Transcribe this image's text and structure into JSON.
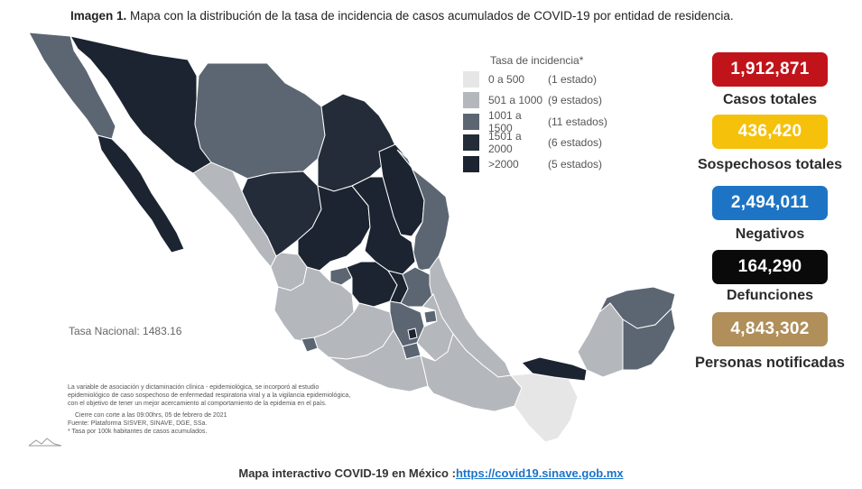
{
  "header": {
    "title_bold": "Imagen 1.",
    "title_rest": " Mapa con la distribución de la tasa de incidencia de casos acumulados de COVID-19 por entidad de residencia."
  },
  "legend": {
    "title": "Tasa de incidencia*",
    "items": [
      {
        "range": "0 a  500",
        "count": "(1 estado)",
        "color": "#e6e6e6"
      },
      {
        "range": "501 a  1000",
        "count": "(9 estados)",
        "color": "#b4b7bc"
      },
      {
        "range": "1001 a  1500",
        "count": "(11 estados)",
        "color": "#5c6672"
      },
      {
        "range": "1501 a  2000",
        "count": "(6 estados)",
        "color": "#232c38"
      },
      {
        "range": ">2000",
        "count": "(5 estados)",
        "color": "#1b2430"
      }
    ]
  },
  "national_rate": "Tasa Nacional: 1483.16",
  "footnote": {
    "line1": "La variable de asociación y dictaminación clínica - epidemiológica, se incorporó al estudio",
    "line2": "epidemiológico de caso sospechoso de enfermedad respiratoria viral y a la vigilancia epidemiológica,",
    "line3": "con el objetivo de tener un mejor acercamiento al comportamiento de la epidemia en el país.",
    "cutoff": "Cierre con corte a las 09:00hrs, 05 de febrero de 2021",
    "source": "Fuente: Plataforma SISVER, SINAVE, DGE, SSa.",
    "note": "* Tasa por 100k habitantes de casos acumulados."
  },
  "stats": [
    {
      "value": "1,912,871",
      "label": "Casos totales",
      "color": "#c0141a"
    },
    {
      "value": "436,420",
      "label": "Sospechosos totales",
      "color": "#f5c10a"
    },
    {
      "value": "2,494,011",
      "label": "Negativos",
      "color": "#1e74c4"
    },
    {
      "value": "164,290",
      "label": "Defunciones",
      "color": "#0a0a0a"
    },
    {
      "value": "4,843,302",
      "label": "Personas notificadas",
      "color": "#b08f5a"
    }
  ],
  "footer": {
    "text": "Mapa interactivo COVID-19 en México :",
    "link": "https://covid19.sinave.gob.mx"
  }
}
